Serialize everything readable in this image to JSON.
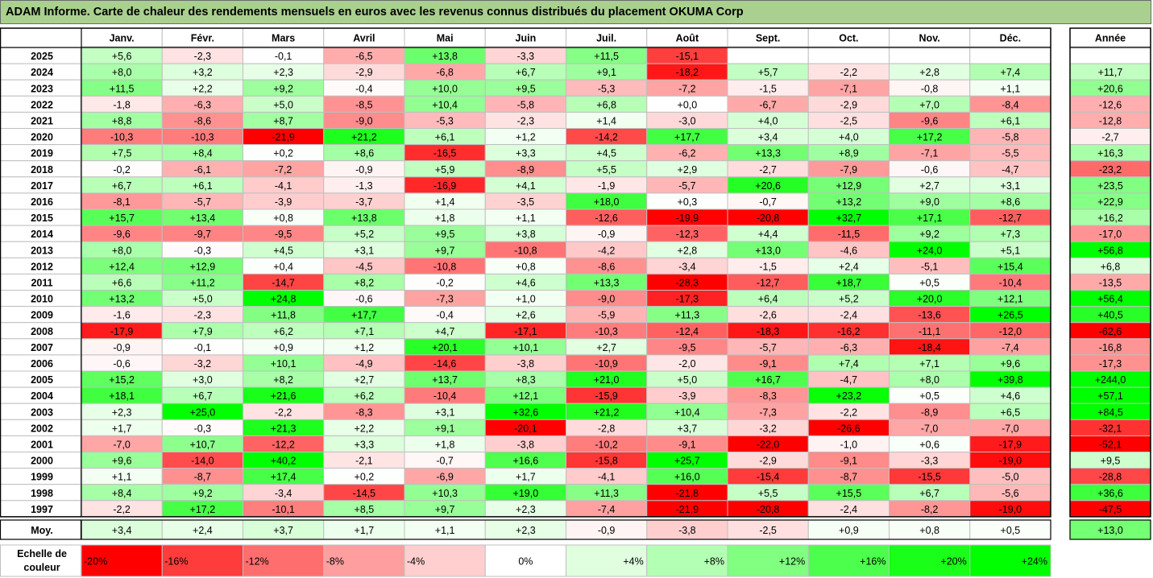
{
  "title": "ADAM Informe. Carte de chaleur des rendements mensuels en euros avec les revenus connus distribués du placement OKUMA Corp",
  "chart_data": {
    "type": "heatmap",
    "title": "ADAM Informe. Carte de chaleur des rendements mensuels en euros avec les revenus connus distribués du placement OKUMA Corp",
    "columns": [
      "Janv.",
      "Févr.",
      "Mars",
      "Avril",
      "Mai",
      "Juin",
      "Juil.",
      "Août",
      "Sept.",
      "Oct.",
      "Nov.",
      "Déc."
    ],
    "year_header": "Année",
    "rows": [
      {
        "year": "2025",
        "values": [
          "+5,6",
          "-2,3",
          "-0,1",
          "-6,5",
          "+13,8",
          "-3,3",
          "+11,5",
          "-15,1",
          "",
          "",
          "",
          ""
        ],
        "annual": ""
      },
      {
        "year": "2024",
        "values": [
          "+8,0",
          "+3,2",
          "+2,3",
          "-2,9",
          "-6,8",
          "+6,7",
          "+9,1",
          "-18,2",
          "+5,7",
          "-2,2",
          "+2,8",
          "+7,4"
        ],
        "annual": "+11,7"
      },
      {
        "year": "2023",
        "values": [
          "+11,5",
          "+2,2",
          "+9,2",
          "-0,4",
          "+10,0",
          "+9,5",
          "-5,3",
          "-7,2",
          "-1,5",
          "-7,1",
          "-0,8",
          "+1,1"
        ],
        "annual": "+20,6"
      },
      {
        "year": "2022",
        "values": [
          "-1,8",
          "-6,3",
          "+5,0",
          "-8,5",
          "+10,4",
          "-5,8",
          "+6,8",
          "+0,0",
          "-6,7",
          "-2,9",
          "+7,0",
          "-8,4"
        ],
        "annual": "-12,6"
      },
      {
        "year": "2021",
        "values": [
          "+8,8",
          "-8,6",
          "+8,7",
          "-9,0",
          "-5,3",
          "-2,3",
          "+1,4",
          "-3,0",
          "+4,0",
          "-2,5",
          "-9,6",
          "+6,1"
        ],
        "annual": "-12,8"
      },
      {
        "year": "2020",
        "values": [
          "-10,3",
          "-10,3",
          "-21,9",
          "+21,2",
          "+6,1",
          "+1,2",
          "-14,2",
          "+17,7",
          "+3,4",
          "+4,0",
          "+17,2",
          "-5,8"
        ],
        "annual": "-2,7"
      },
      {
        "year": "2019",
        "values": [
          "+7,5",
          "+8,4",
          "+0,2",
          "+8,6",
          "-16,5",
          "+3,3",
          "+4,5",
          "-6,2",
          "+13,3",
          "+8,9",
          "-7,1",
          "-5,5"
        ],
        "annual": "+16,3"
      },
      {
        "year": "2018",
        "values": [
          "-0,2",
          "-6,1",
          "-7,2",
          "-0,9",
          "+5,9",
          "-8,9",
          "+5,5",
          "+2,9",
          "-2,7",
          "-7,9",
          "-0,6",
          "-4,7"
        ],
        "annual": "-23,2"
      },
      {
        "year": "2017",
        "values": [
          "+6,7",
          "+6,1",
          "-4,1",
          "-1,3",
          "-16,9",
          "+4,1",
          "-1,9",
          "-5,7",
          "+20,6",
          "+12,9",
          "+2,7",
          "+3,1"
        ],
        "annual": "+23,5"
      },
      {
        "year": "2016",
        "values": [
          "-8,1",
          "-5,7",
          "-3,9",
          "-3,7",
          "+1,4",
          "-3,5",
          "+18,0",
          "+0,3",
          "-0,7",
          "+13,2",
          "+9,0",
          "+8,6"
        ],
        "annual": "+22,9"
      },
      {
        "year": "2015",
        "values": [
          "+15,7",
          "+13,4",
          "+0,8",
          "+13,8",
          "+1,8",
          "+1,1",
          "-12,6",
          "-19,9",
          "-20,8",
          "+32,7",
          "+17,1",
          "-12,7"
        ],
        "annual": "+16,2"
      },
      {
        "year": "2014",
        "values": [
          "-9,6",
          "-9,7",
          "-9,5",
          "+5,2",
          "+9,5",
          "+3,8",
          "-0,9",
          "-12,3",
          "+4,4",
          "-11,5",
          "+9,2",
          "+7,3"
        ],
        "annual": "-17,0"
      },
      {
        "year": "2013",
        "values": [
          "+8,0",
          "-0,3",
          "+4,5",
          "+3,1",
          "+9,7",
          "-10,8",
          "-4,2",
          "+2,8",
          "+13,0",
          "-4,6",
          "+24,0",
          "+5,1"
        ],
        "annual": "+56,8"
      },
      {
        "year": "2012",
        "values": [
          "+12,4",
          "+12,9",
          "+0,4",
          "-4,5",
          "-10,8",
          "+0,8",
          "-8,6",
          "-3,4",
          "-1,5",
          "+2,4",
          "-5,1",
          "+15,4"
        ],
        "annual": "+6,8"
      },
      {
        "year": "2011",
        "values": [
          "+6,6",
          "+11,2",
          "-14,7",
          "+8,2",
          "-0,2",
          "+4,6",
          "+13,3",
          "-28,3",
          "-12,7",
          "+18,7",
          "+0,5",
          "-10,4"
        ],
        "annual": "-13,5"
      },
      {
        "year": "2010",
        "values": [
          "+13,2",
          "+5,0",
          "+24,8",
          "-0,6",
          "-7,3",
          "+1,0",
          "-9,0",
          "-17,3",
          "+6,4",
          "+5,2",
          "+20,0",
          "+12,1"
        ],
        "annual": "+56,4"
      },
      {
        "year": "2009",
        "values": [
          "-1,6",
          "-2,3",
          "+11,8",
          "+17,7",
          "-0,4",
          "+2,6",
          "-5,9",
          "+11,3",
          "-2,6",
          "-2,4",
          "-13,6",
          "+26,5"
        ],
        "annual": "+40,5"
      },
      {
        "year": "2008",
        "values": [
          "-17,9",
          "+7,9",
          "+6,2",
          "+7,1",
          "+4,7",
          "-17,1",
          "-10,3",
          "-12,4",
          "-18,3",
          "-16,2",
          "-11,1",
          "-12,0"
        ],
        "annual": "-62,6"
      },
      {
        "year": "2007",
        "values": [
          "-0,9",
          "-0,1",
          "+0,9",
          "+1,2",
          "+20,1",
          "+10,1",
          "+2,7",
          "-9,5",
          "-5,7",
          "-6,3",
          "-18,4",
          "-7,4"
        ],
        "annual": "-16,8"
      },
      {
        "year": "2006",
        "values": [
          "-0,6",
          "-3,2",
          "+10,1",
          "-4,9",
          "-14,6",
          "-3,8",
          "-10,9",
          "-2,0",
          "-9,1",
          "+7,4",
          "+7,1",
          "+9,6"
        ],
        "annual": "-17,3"
      },
      {
        "year": "2005",
        "values": [
          "+15,2",
          "+3,0",
          "+8,2",
          "+2,7",
          "+13,7",
          "+8,3",
          "+21,0",
          "+5,0",
          "+16,7",
          "-4,7",
          "+8,0",
          "+39,8"
        ],
        "annual": "+244,0"
      },
      {
        "year": "2004",
        "values": [
          "+18,1",
          "+6,7",
          "+21,6",
          "+6,2",
          "-10,4",
          "+12,1",
          "-15,9",
          "-3,9",
          "-8,3",
          "+23,2",
          "+0,5",
          "+4,6"
        ],
        "annual": "+57,1"
      },
      {
        "year": "2003",
        "values": [
          "+2,3",
          "+25,0",
          "-2,2",
          "-8,3",
          "+3,1",
          "+32,6",
          "+21,2",
          "+10,4",
          "-7,3",
          "-2,2",
          "-8,9",
          "+6,5"
        ],
        "annual": "+84,5"
      },
      {
        "year": "2002",
        "values": [
          "+1,7",
          "-0,3",
          "+21,3",
          "+2,2",
          "+9,1",
          "-20,1",
          "-2,8",
          "+3,7",
          "-3,2",
          "-26,6",
          "-7,0",
          "-7,0"
        ],
        "annual": "-32,1"
      },
      {
        "year": "2001",
        "values": [
          "-7,0",
          "+10,7",
          "-12,2",
          "+3,3",
          "+1,8",
          "-3,8",
          "-10,2",
          "-9,1",
          "-22,0",
          "-1,0",
          "+0,6",
          "-17,9"
        ],
        "annual": "-52,1"
      },
      {
        "year": "2000",
        "values": [
          "+9,6",
          "-14,0",
          "+40,2",
          "-2,1",
          "-0,7",
          "+16,6",
          "-15,8",
          "+25,7",
          "-2,9",
          "-9,1",
          "-3,3",
          "-19,0"
        ],
        "annual": "+9,5"
      },
      {
        "year": "1999",
        "values": [
          "+1,1",
          "-8,7",
          "+17,4",
          "+0,2",
          "-6,9",
          "+1,7",
          "-4,1",
          "+16,0",
          "-15,4",
          "-8,7",
          "-15,5",
          "-5,0"
        ],
        "annual": "-28,8"
      },
      {
        "year": "1998",
        "values": [
          "+8,4",
          "+9,2",
          "-3,4",
          "-14,5",
          "+10,3",
          "+19,0",
          "+11,3",
          "-21,8",
          "+5,5",
          "+15,5",
          "+6,7",
          "-5,6"
        ],
        "annual": "+36,6"
      },
      {
        "year": "1997",
        "values": [
          "-2,2",
          "+17,2",
          "-10,1",
          "+8,5",
          "+9,7",
          "+2,3",
          "-7,4",
          "-21,9",
          "-20,8",
          "-2,4",
          "-8,2",
          "-19,0"
        ],
        "annual": "-47,5"
      }
    ],
    "average": {
      "label": "Moy.",
      "values": [
        "+3,4",
        "+2,4",
        "+3,7",
        "+1,7",
        "+1,1",
        "+2,3",
        "-0,9",
        "-3,8",
        "-2,5",
        "+0,9",
        "+0,8",
        "+0,5"
      ],
      "annual": "+13,0"
    },
    "scale": {
      "label_lines": [
        "Echelle de",
        "couleur"
      ],
      "stops": [
        {
          "label": "-20%",
          "value": -20,
          "color": "#ff0000"
        },
        {
          "label": "-16%",
          "value": -16,
          "color": "#ff3c3c"
        },
        {
          "label": "-12%",
          "value": -12,
          "color": "#ff6e6e"
        },
        {
          "label": "-8%",
          "value": -8,
          "color": "#ff9e9e"
        },
        {
          "label": "-4%",
          "value": -4,
          "color": "#ffcfcf"
        },
        {
          "label": "0%",
          "value": 0,
          "color": "#ffffff"
        },
        {
          "label": "+4%",
          "value": 4,
          "color": "#dfffdf"
        },
        {
          "label": "+8%",
          "value": 8,
          "color": "#b3ffb3"
        },
        {
          "label": "+12%",
          "value": 12,
          "color": "#80ff80"
        },
        {
          "label": "+16%",
          "value": 16,
          "color": "#4dff4d"
        },
        {
          "label": "+20%",
          "value": 20,
          "color": "#1aff1a"
        },
        {
          "label": "+24%",
          "value": 24,
          "color": "#00ff00"
        }
      ]
    },
    "colors": {
      "title_bg": "#a9d08e",
      "border": "#bfbfbf",
      "frame": "#000000"
    }
  }
}
